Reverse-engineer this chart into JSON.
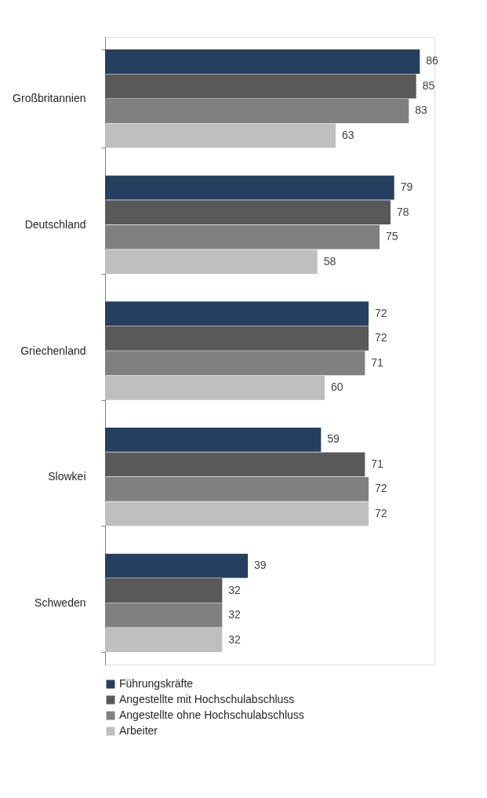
{
  "chart_data": {
    "type": "bar",
    "orientation": "horizontal",
    "categories": [
      "Großbritannien",
      "Deutschland",
      "Griechenland",
      "Slowkei",
      "Schweden"
    ],
    "series": [
      {
        "name": "Führungskräfte",
        "color": "#243f60",
        "values": [
          86,
          79,
          72,
          59,
          39
        ]
      },
      {
        "name": "Angestellte mit Hochschulabschluss",
        "color": "#595959",
        "values": [
          85,
          78,
          72,
          71,
          32
        ]
      },
      {
        "name": "Angestellte ohne Hochschulabschluss",
        "color": "#808080",
        "values": [
          83,
          75,
          71,
          72,
          32
        ]
      },
      {
        "name": "Arbeiter",
        "color": "#bfbfbf",
        "values": [
          63,
          58,
          60,
          72,
          32
        ]
      }
    ],
    "data_labels": true,
    "legend": "bottom"
  }
}
